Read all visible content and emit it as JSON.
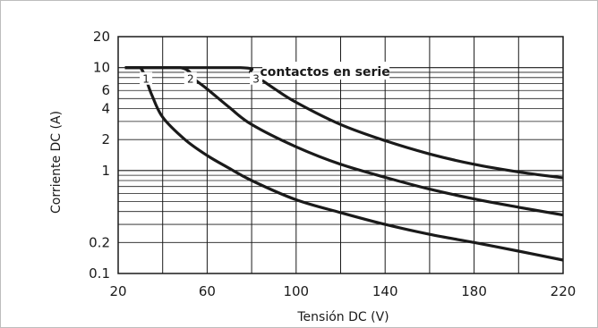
{
  "chart_data": {
    "type": "line",
    "xlabel": "Tensión DC (V)",
    "ylabel": "Corriente DC (A)",
    "xlim": [
      20,
      220
    ],
    "ylim": [
      0.1,
      20
    ],
    "yscale": "log",
    "xticks": [
      20,
      60,
      100,
      140,
      180,
      220
    ],
    "xtick_labels": [
      "20",
      "60",
      "100",
      "140",
      "180",
      "220"
    ],
    "yticks": [
      0.1,
      0.2,
      1,
      2,
      4,
      6,
      10,
      20
    ],
    "ytick_labels": [
      "0.1",
      "0.2",
      "1",
      "2",
      "4",
      "6",
      "10",
      "20"
    ],
    "grid": true,
    "annotation": "contactos en serie",
    "series": [
      {
        "label": "1",
        "x": [
          30,
          35,
          40,
          50,
          60,
          70,
          80,
          100,
          120,
          140,
          160,
          180,
          200,
          220
        ],
        "y": [
          10,
          5.5,
          3.3,
          2.0,
          1.4,
          1.05,
          0.8,
          0.52,
          0.39,
          0.3,
          0.24,
          0.2,
          0.165,
          0.135
        ]
      },
      {
        "label": "2",
        "x": [
          48,
          55,
          60,
          70,
          80,
          100,
          120,
          140,
          160,
          180,
          200,
          220
        ],
        "y": [
          10,
          7.5,
          6.2,
          4.1,
          2.8,
          1.7,
          1.15,
          0.86,
          0.66,
          0.53,
          0.44,
          0.37
        ]
      },
      {
        "label": "3",
        "x": [
          75,
          80,
          90,
          100,
          120,
          140,
          160,
          180,
          200,
          220
        ],
        "y": [
          10,
          8.8,
          6.3,
          4.6,
          2.8,
          1.95,
          1.45,
          1.15,
          0.97,
          0.85
        ]
      }
    ]
  }
}
